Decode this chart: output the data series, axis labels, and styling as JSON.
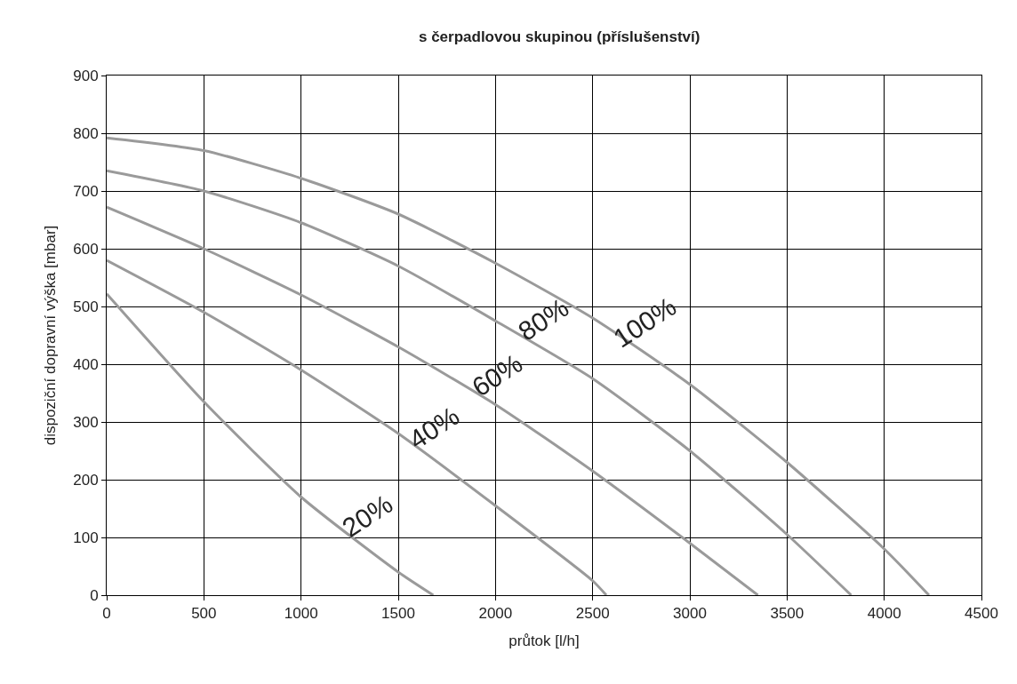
{
  "chart_data": {
    "type": "line",
    "title": "s čerpadlovou skupinou (příslušenství)",
    "xlabel": "průtok [l/h]",
    "ylabel": "dispoziční dopravní výška [mbar]",
    "xlim": [
      0,
      4500
    ],
    "xticks": [
      0,
      500,
      1000,
      1500,
      2000,
      2500,
      3000,
      3500,
      4000,
      4500
    ],
    "ylim": [
      0,
      900
    ],
    "yticks": [
      0,
      100,
      200,
      300,
      400,
      500,
      600,
      700,
      800,
      900
    ],
    "grid": true,
    "legend": false,
    "marker": "none",
    "line_style": "solid",
    "series": [
      {
        "name": "100%",
        "color": "#9a9a9a",
        "x": [
          0,
          500,
          1000,
          1500,
          2000,
          2500,
          3000,
          3500,
          4000,
          4230
        ],
        "values": [
          792,
          770,
          722,
          660,
          575,
          480,
          365,
          230,
          80,
          0
        ]
      },
      {
        "name": "80%",
        "color": "#9a9a9a",
        "x": [
          0,
          500,
          1000,
          1500,
          2000,
          2500,
          3000,
          3500,
          3830
        ],
        "values": [
          735,
          700,
          645,
          570,
          475,
          375,
          250,
          105,
          0
        ]
      },
      {
        "name": "60%",
        "color": "#9a9a9a",
        "x": [
          0,
          500,
          1000,
          1500,
          2000,
          2500,
          3000,
          3350
        ],
        "values": [
          672,
          600,
          520,
          430,
          330,
          215,
          90,
          0
        ]
      },
      {
        "name": "40%",
        "color": "#9a9a9a",
        "x": [
          0,
          500,
          1000,
          1500,
          2000,
          2500,
          2570
        ],
        "values": [
          580,
          490,
          390,
          280,
          155,
          25,
          0
        ]
      },
      {
        "name": "20%",
        "color": "#9a9a9a",
        "x": [
          0,
          500,
          1000,
          1500,
          1680
        ],
        "values": [
          522,
          335,
          170,
          40,
          0
        ]
      }
    ]
  }
}
